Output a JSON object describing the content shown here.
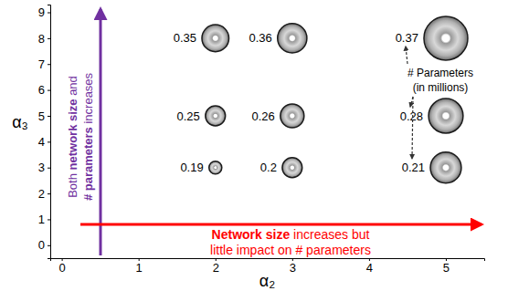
{
  "chart_data": {
    "type": "scatter",
    "x_label": "α₂",
    "y_label": "α₃",
    "xlim": [
      -0.15,
      5.5
    ],
    "xticks": [
      0,
      1,
      2,
      3,
      4,
      5
    ],
    "ylim": [
      -0.5,
      9.3
    ],
    "yticks": [
      0,
      1,
      2,
      3,
      4,
      5,
      6,
      7,
      8,
      9
    ],
    "grid": false,
    "series": [
      {
        "marker": "circle",
        "x": [
          2,
          3,
          5,
          2,
          3,
          5,
          2,
          3,
          5
        ],
        "values": [
          8,
          8,
          8,
          5,
          5,
          5,
          3,
          3,
          3
        ],
        "sizes": [
          22,
          26,
          58,
          12,
          17,
          36,
          5,
          12,
          29
        ],
        "parameters": [
          0.35,
          0.36,
          0.37,
          0.25,
          0.26,
          0.28,
          0.19,
          0.2,
          0.21
        ]
      }
    ],
    "annotations": [
      {
        "lines": [
          [
            "Both ",
            "network size",
            " and"
          ],
          [
            "# parameters",
            " increases"
          ]
        ],
        "color": "#7030a0"
      },
      {
        "lines": [
          [
            "Network size",
            " increases but"
          ],
          [
            "little impact on # parameters"
          ]
        ],
        "color": "#ff0000"
      },
      {
        "lines": [
          [
            "# Parameters"
          ],
          [
            "(in millions)"
          ]
        ],
        "color": "#000000"
      }
    ]
  }
}
